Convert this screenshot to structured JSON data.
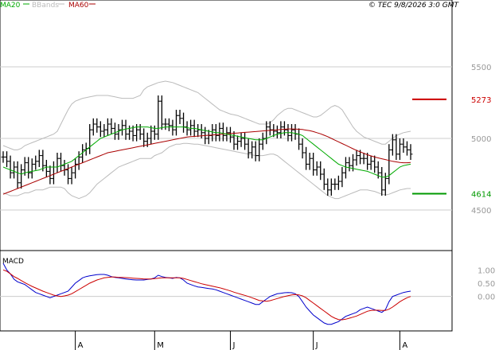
{
  "chart_data": [
    {
      "type": "ohlc",
      "legend": [
        {
          "label": "MA20",
          "color": "#00aa00"
        },
        {
          "label": "BBands",
          "color": "#bbbbbb"
        },
        {
          "label": "MA60",
          "color": "#aa0000"
        }
      ],
      "timestamp": "© TEC 9/8/2026 3:0 GMT",
      "ylim": [
        4300,
        5800
      ],
      "y_ticks": [
        {
          "value": 5500,
          "label": "5500"
        },
        {
          "value": 5000,
          "label": "5000"
        },
        {
          "value": 4500,
          "label": "4500"
        }
      ],
      "markers": [
        {
          "value": 5273,
          "label": "5273",
          "color": "#cc0000"
        },
        {
          "value": 4614,
          "label": "4614",
          "color": "#009900"
        }
      ],
      "series": {
        "close": [
          4870,
          4840,
          4760,
          4800,
          4690,
          4780,
          4830,
          4760,
          4820,
          4840,
          4880,
          4810,
          4770,
          4720,
          4800,
          4860,
          4810,
          4780,
          4720,
          4760,
          4820,
          4870,
          4920,
          4930,
          5060,
          5100,
          5080,
          5050,
          5060,
          5100,
          5070,
          5030,
          5060,
          5090,
          5030,
          5050,
          5020,
          5060,
          5030,
          4980,
          5000,
          5050,
          5030,
          5260,
          5100,
          5100,
          5090,
          5060,
          5160,
          5140,
          5080,
          5060,
          5090,
          5050,
          5060,
          5040,
          5000,
          5020,
          5060,
          5020,
          5070,
          5020,
          5040,
          5010,
          4960,
          4980,
          5000,
          4960,
          4900,
          4940,
          4880,
          4960,
          5000,
          5080,
          5060,
          5050,
          5040,
          5080,
          5060,
          5020,
          5060,
          5030,
          4960,
          4900,
          4820,
          4860,
          4780,
          4800,
          4750,
          4680,
          4640,
          4680,
          4680,
          4700,
          4760,
          4830,
          4810,
          4850,
          4880,
          4860,
          4860,
          4820,
          4840,
          4800,
          4760,
          4640,
          4720,
          4920,
          4990,
          4890,
          4960,
          4940,
          4920,
          4890
        ],
        "ma20": [
          4800,
          4790,
          4780,
          4770,
          4760,
          4750,
          4760,
          4765,
          4770,
          4775,
          4780,
          4790,
          4800,
          4800,
          4800,
          4800,
          4810,
          4820,
          4830,
          4840,
          4860,
          4880,
          4900,
          4920,
          4940,
          4960,
          4980,
          5000,
          5010,
          5020,
          5030,
          5040,
          5050,
          5060,
          5065,
          5070,
          5075,
          5080,
          5080,
          5080,
          5080,
          5075,
          5070,
          5070,
          5075,
          5080,
          5080,
          5080,
          5080,
          5080,
          5080,
          5075,
          5070,
          5070,
          5065,
          5060,
          5055,
          5050,
          5045,
          5040,
          5040,
          5035,
          5030,
          5025,
          5020,
          5015,
          5010,
          5005,
          5000,
          4995,
          4990,
          4990,
          4990,
          5000,
          5010,
          5020,
          5030,
          5035,
          5040,
          5040,
          5040,
          5035,
          5030,
          5020,
          5000,
          4980,
          4960,
          4940,
          4920,
          4900,
          4880,
          4860,
          4840,
          4820,
          4810,
          4800,
          4795,
          4790,
          4785,
          4780,
          4775,
          4770,
          4760,
          4750,
          4740,
          4730,
          4730,
          4740,
          4760,
          4780,
          4800,
          4810,
          4815,
          4820
        ],
        "ma60": [
          4610,
          4620,
          4630,
          4640,
          4650,
          4660,
          4670,
          4680,
          4690,
          4700,
          4710,
          4720,
          4730,
          4740,
          4750,
          4760,
          4770,
          4780,
          4790,
          4800,
          4810,
          4820,
          4830,
          4840,
          4850,
          4860,
          4870,
          4880,
          4890,
          4900,
          4905,
          4910,
          4915,
          4920,
          4925,
          4930,
          4935,
          4940,
          4945,
          4950,
          4955,
          4960,
          4965,
          4970,
          4975,
          4980,
          4985,
          4990,
          4995,
          5000,
          5005,
          5010,
          5012,
          5014,
          5016,
          5018,
          5020,
          5022,
          5024,
          5026,
          5028,
          5030,
          5032,
          5034,
          5036,
          5038,
          5040,
          5042,
          5044,
          5046,
          5048,
          5050,
          5052,
          5054,
          5056,
          5058,
          5060,
          5062,
          5064,
          5066,
          5066,
          5065,
          5064,
          5062,
          5058,
          5054,
          5048,
          5040,
          5032,
          5022,
          5012,
          5000,
          4988,
          4976,
          4964,
          4952,
          4940,
          4928,
          4916,
          4906,
          4896,
          4886,
          4878,
          4870,
          4864,
          4858,
          4852,
          4846,
          4840,
          4836,
          4832,
          4830,
          4830,
          4832
        ],
        "bb_upper": [
          4950,
          4940,
          4930,
          4920,
          4920,
          4930,
          4950,
          4960,
          4970,
          4980,
          4990,
          5000,
          5010,
          5020,
          5030,
          5050,
          5100,
          5150,
          5200,
          5240,
          5260,
          5270,
          5280,
          5285,
          5290,
          5295,
          5300,
          5300,
          5300,
          5300,
          5295,
          5290,
          5285,
          5280,
          5280,
          5280,
          5280,
          5290,
          5300,
          5340,
          5360,
          5370,
          5380,
          5390,
          5395,
          5400,
          5395,
          5390,
          5380,
          5370,
          5360,
          5350,
          5340,
          5330,
          5320,
          5300,
          5280,
          5260,
          5240,
          5220,
          5200,
          5190,
          5180,
          5170,
          5165,
          5160,
          5150,
          5140,
          5130,
          5120,
          5110,
          5100,
          5100,
          5100,
          5110,
          5130,
          5160,
          5180,
          5200,
          5210,
          5210,
          5200,
          5190,
          5180,
          5170,
          5160,
          5150,
          5150,
          5160,
          5180,
          5200,
          5220,
          5230,
          5220,
          5200,
          5160,
          5120,
          5080,
          5050,
          5030,
          5010,
          5000,
          4990,
          4980,
          4970,
          4960,
          4960,
          4980,
          5000,
          5020,
          5030,
          5040,
          5045,
          5050
        ],
        "bb_lower": [
          4620,
          4610,
          4600,
          4600,
          4600,
          4610,
          4620,
          4620,
          4630,
          4640,
          4640,
          4640,
          4650,
          4660,
          4660,
          4660,
          4660,
          4650,
          4620,
          4600,
          4590,
          4580,
          4590,
          4600,
          4620,
          4650,
          4680,
          4700,
          4720,
          4740,
          4760,
          4780,
          4800,
          4810,
          4820,
          4830,
          4840,
          4850,
          4860,
          4860,
          4860,
          4860,
          4880,
          4890,
          4900,
          4920,
          4940,
          4950,
          4960,
          4960,
          4965,
          4965,
          4962,
          4960,
          4960,
          4955,
          4950,
          4945,
          4940,
          4935,
          4930,
          4925,
          4920,
          4915,
          4910,
          4905,
          4900,
          4895,
          4890,
          4885,
          4880,
          4880,
          4880,
          4885,
          4890,
          4890,
          4880,
          4860,
          4840,
          4820,
          4800,
          4780,
          4760,
          4740,
          4720,
          4700,
          4680,
          4660,
          4640,
          4620,
          4600,
          4590,
          4580,
          4580,
          4590,
          4600,
          4610,
          4620,
          4630,
          4640,
          4640,
          4640,
          4635,
          4630,
          4620,
          4610,
          4605,
          4610,
          4620,
          4630,
          4640,
          4645,
          4650,
          4650
        ]
      }
    },
    {
      "type": "line",
      "title": "MACD",
      "ylim": [
        -1.3,
        1.7
      ],
      "y_ticks": [
        {
          "value": 1.0,
          "label": "1.00"
        },
        {
          "value": 0.5,
          "label": "0.50"
        },
        {
          "value": 0.0,
          "label": "0.00"
        }
      ],
      "macd": [
        1.25,
        1.0,
        0.85,
        0.65,
        0.55,
        0.5,
        0.45,
        0.35,
        0.25,
        0.15,
        0.1,
        0.05,
        0.0,
        -0.05,
        0.0,
        0.05,
        0.1,
        0.15,
        0.2,
        0.35,
        0.5,
        0.6,
        0.7,
        0.75,
        0.78,
        0.8,
        0.82,
        0.83,
        0.83,
        0.8,
        0.75,
        0.72,
        0.7,
        0.68,
        0.66,
        0.64,
        0.63,
        0.62,
        0.62,
        0.62,
        0.64,
        0.66,
        0.7,
        0.8,
        0.75,
        0.72,
        0.7,
        0.68,
        0.72,
        0.7,
        0.62,
        0.5,
        0.45,
        0.4,
        0.36,
        0.34,
        0.32,
        0.3,
        0.28,
        0.25,
        0.2,
        0.15,
        0.1,
        0.05,
        0.0,
        -0.05,
        -0.1,
        -0.15,
        -0.2,
        -0.25,
        -0.3,
        -0.3,
        -0.2,
        -0.1,
        0.0,
        0.05,
        0.1,
        0.12,
        0.14,
        0.15,
        0.14,
        0.1,
        0.0,
        -0.2,
        -0.4,
        -0.55,
        -0.7,
        -0.8,
        -0.9,
        -1.0,
        -1.05,
        -1.05,
        -1.0,
        -0.95,
        -0.85,
        -0.75,
        -0.7,
        -0.65,
        -0.6,
        -0.5,
        -0.45,
        -0.4,
        -0.45,
        -0.5,
        -0.55,
        -0.6,
        -0.5,
        -0.2,
        0.0,
        0.05,
        0.1,
        0.15,
        0.18,
        0.2
      ],
      "signal": [
        1.0,
        0.95,
        0.85,
        0.75,
        0.68,
        0.6,
        0.52,
        0.45,
        0.38,
        0.32,
        0.26,
        0.2,
        0.15,
        0.1,
        0.05,
        0.02,
        0.0,
        0.02,
        0.05,
        0.1,
        0.18,
        0.26,
        0.34,
        0.42,
        0.5,
        0.56,
        0.62,
        0.66,
        0.7,
        0.72,
        0.73,
        0.73,
        0.72,
        0.72,
        0.71,
        0.7,
        0.69,
        0.68,
        0.67,
        0.66,
        0.66,
        0.66,
        0.67,
        0.69,
        0.7,
        0.7,
        0.7,
        0.7,
        0.7,
        0.7,
        0.68,
        0.64,
        0.6,
        0.56,
        0.52,
        0.48,
        0.45,
        0.42,
        0.39,
        0.36,
        0.33,
        0.29,
        0.25,
        0.21,
        0.16,
        0.12,
        0.08,
        0.04,
        0.0,
        -0.05,
        -0.1,
        -0.15,
        -0.17,
        -0.18,
        -0.16,
        -0.12,
        -0.08,
        -0.04,
        0.0,
        0.03,
        0.06,
        0.07,
        0.06,
        0.02,
        -0.05,
        -0.15,
        -0.25,
        -0.35,
        -0.45,
        -0.55,
        -0.65,
        -0.75,
        -0.82,
        -0.87,
        -0.88,
        -0.86,
        -0.82,
        -0.78,
        -0.74,
        -0.68,
        -0.62,
        -0.56,
        -0.53,
        -0.52,
        -0.52,
        -0.53,
        -0.53,
        -0.48,
        -0.4,
        -0.3,
        -0.2,
        -0.12,
        -0.05,
        0.0
      ],
      "macd_color": "#0000cc",
      "signal_color": "#cc0000"
    }
  ],
  "x_ticks": [
    {
      "index": 20,
      "label": "A"
    },
    {
      "index": 42,
      "label": "M"
    },
    {
      "index": 63,
      "label": "J"
    },
    {
      "index": 86,
      "label": "J"
    },
    {
      "index": 110,
      "label": "A"
    }
  ]
}
